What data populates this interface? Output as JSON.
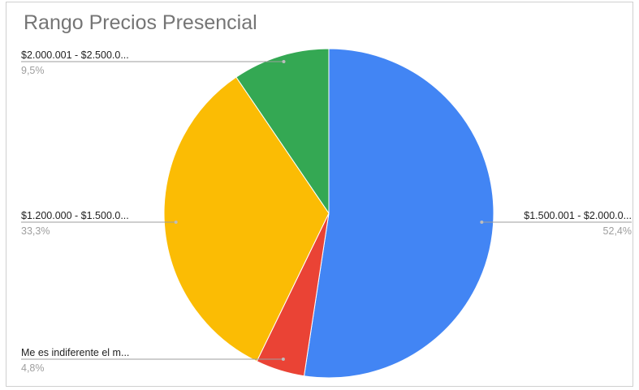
{
  "chart_data": {
    "type": "pie",
    "title": "Rango Precios Presencial",
    "start_angle_deg": 0,
    "direction": "clockwise",
    "slices": [
      {
        "label": "$1.500.001 - $2.000.0...",
        "percent_label": "52,4%",
        "value": 52.4,
        "color": "#4285f4",
        "label_side": "right"
      },
      {
        "label": "Me es indiferente el m...",
        "percent_label": "4,8%",
        "value": 4.8,
        "color": "#ea4335",
        "label_side": "left"
      },
      {
        "label": "$1.200.000 - $1.500.0...",
        "percent_label": "33,3%",
        "value": 33.3,
        "color": "#fbbc04",
        "label_side": "left"
      },
      {
        "label": "$2.000.001 - $2.500.0...",
        "percent_label": "9,5%",
        "value": 9.5,
        "color": "#34a853",
        "label_side": "left"
      }
    ]
  }
}
